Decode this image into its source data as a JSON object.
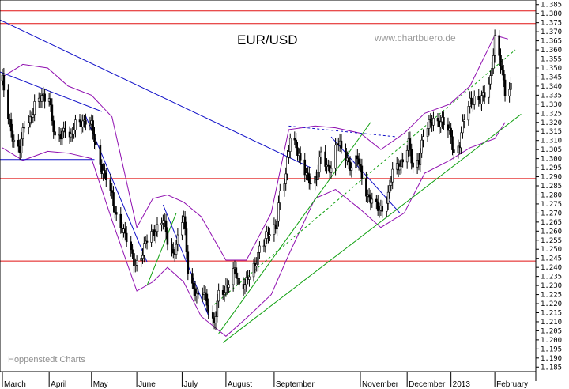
{
  "chart_data": {
    "type": "candlestick",
    "title": "EUR/USD",
    "watermark": "www.chartbuero.de",
    "credit": "Hoppenstedt Charts",
    "ylim": [
      1.1825,
      1.3875
    ],
    "y_ticks": [
      "1.185",
      "1.190",
      "1.195",
      "1.200",
      "1.205",
      "1.210",
      "1.215",
      "1.220",
      "1.225",
      "1.230",
      "1.235",
      "1.240",
      "1.245",
      "1.250",
      "1.255",
      "1.260",
      "1.265",
      "1.270",
      "1.275",
      "1.280",
      "1.285",
      "1.290",
      "1.295",
      "1.300",
      "1.305",
      "1.310",
      "1.315",
      "1.320",
      "1.325",
      "1.330",
      "1.335",
      "1.340",
      "1.345",
      "1.350",
      "1.355",
      "1.360",
      "1.365",
      "1.370",
      "1.375",
      "1.380",
      "1.385"
    ],
    "x_start": "2012-03-01",
    "x_end": "2013-02-15",
    "months": [
      {
        "label": "March",
        "date": "2012-03-01"
      },
      {
        "label": "April",
        "date": "2012-04-02"
      },
      {
        "label": "May",
        "date": "2012-05-01"
      },
      {
        "label": "June",
        "date": "2012-06-01"
      },
      {
        "label": "July",
        "date": "2012-07-02"
      },
      {
        "label": "August",
        "date": "2012-08-01"
      },
      {
        "label": "September",
        "date": "2012-09-03"
      },
      {
        "label": "November",
        "date": "2012-11-01"
      },
      {
        "label": "December",
        "date": "2012-12-03"
      },
      {
        "label": "2013",
        "date": "2013-01-02"
      },
      {
        "label": "February",
        "date": "2013-02-01"
      }
    ],
    "horizontal_levels": [
      1.3815,
      1.3745,
      1.289,
      1.2435
    ],
    "close_path": [
      [
        "2012-03-01",
        1.343
      ],
      [
        "2012-03-05",
        1.322
      ],
      [
        "2012-03-09",
        1.31
      ],
      [
        "2012-03-13",
        1.305
      ],
      [
        "2012-03-16",
        1.318
      ],
      [
        "2012-03-20",
        1.322
      ],
      [
        "2012-03-23",
        1.33
      ],
      [
        "2012-03-28",
        1.333
      ],
      [
        "2012-04-02",
        1.335
      ],
      [
        "2012-04-06",
        1.31
      ],
      [
        "2012-04-10",
        1.312
      ],
      [
        "2012-04-13",
        1.318
      ],
      [
        "2012-04-17",
        1.312
      ],
      [
        "2012-04-20",
        1.318
      ],
      [
        "2012-04-24",
        1.32
      ],
      [
        "2012-04-27",
        1.322
      ],
      [
        "2012-05-01",
        1.318
      ],
      [
        "2012-05-04",
        1.305
      ],
      [
        "2012-05-08",
        1.295
      ],
      [
        "2012-05-11",
        1.29
      ],
      [
        "2012-05-15",
        1.278
      ],
      [
        "2012-05-18",
        1.268
      ],
      [
        "2012-05-22",
        1.262
      ],
      [
        "2012-05-25",
        1.255
      ],
      [
        "2012-05-30",
        1.243
      ],
      [
        "2012-06-01",
        1.243
      ],
      [
        "2012-06-05",
        1.248
      ],
      [
        "2012-06-08",
        1.255
      ],
      [
        "2012-06-12",
        1.26
      ],
      [
        "2012-06-15",
        1.262
      ],
      [
        "2012-06-19",
        1.266
      ],
      [
        "2012-06-22",
        1.255
      ],
      [
        "2012-06-26",
        1.248
      ],
      [
        "2012-06-29",
        1.255
      ],
      [
        "2012-07-03",
        1.268
      ],
      [
        "2012-07-06",
        1.24
      ],
      [
        "2012-07-10",
        1.228
      ],
      [
        "2012-07-13",
        1.222
      ],
      [
        "2012-07-17",
        1.227
      ],
      [
        "2012-07-20",
        1.218
      ],
      [
        "2012-07-24",
        1.208
      ],
      [
        "2012-07-27",
        1.225
      ],
      [
        "2012-07-31",
        1.228
      ],
      [
        "2012-08-03",
        1.232
      ],
      [
        "2012-08-07",
        1.238
      ],
      [
        "2012-08-10",
        1.23
      ],
      [
        "2012-08-14",
        1.232
      ],
      [
        "2012-08-17",
        1.235
      ],
      [
        "2012-08-21",
        1.24
      ],
      [
        "2012-08-24",
        1.252
      ],
      [
        "2012-08-28",
        1.256
      ],
      [
        "2012-08-31",
        1.258
      ],
      [
        "2012-09-04",
        1.262
      ],
      [
        "2012-09-07",
        1.282
      ],
      [
        "2012-09-11",
        1.29
      ],
      [
        "2012-09-14",
        1.312
      ],
      [
        "2012-09-18",
        1.308
      ],
      [
        "2012-09-21",
        1.298
      ],
      [
        "2012-09-25",
        1.29
      ],
      [
        "2012-09-28",
        1.288
      ],
      [
        "2012-10-02",
        1.29
      ],
      [
        "2012-10-05",
        1.302
      ],
      [
        "2012-10-09",
        1.295
      ],
      [
        "2012-10-12",
        1.296
      ],
      [
        "2012-10-16",
        1.309
      ],
      [
        "2012-10-19",
        1.305
      ],
      [
        "2012-10-23",
        1.3
      ],
      [
        "2012-10-26",
        1.295
      ],
      [
        "2012-10-30",
        1.3
      ],
      [
        "2012-11-02",
        1.29
      ],
      [
        "2012-11-06",
        1.28
      ],
      [
        "2012-11-09",
        1.276
      ],
      [
        "2012-11-13",
        1.272
      ],
      [
        "2012-11-16",
        1.273
      ],
      [
        "2012-11-20",
        1.28
      ],
      [
        "2012-11-23",
        1.292
      ],
      [
        "2012-11-27",
        1.296
      ],
      [
        "2012-11-30",
        1.3
      ],
      [
        "2012-12-04",
        1.308
      ],
      [
        "2012-12-07",
        1.294
      ],
      [
        "2012-12-11",
        1.3
      ],
      [
        "2012-12-14",
        1.313
      ],
      [
        "2012-12-18",
        1.318
      ],
      [
        "2012-12-21",
        1.322
      ],
      [
        "2012-12-27",
        1.32
      ],
      [
        "2013-01-02",
        1.313
      ],
      [
        "2013-01-04",
        1.303
      ],
      [
        "2013-01-08",
        1.308
      ],
      [
        "2013-01-11",
        1.322
      ],
      [
        "2013-01-15",
        1.332
      ],
      [
        "2013-01-18",
        1.333
      ],
      [
        "2013-01-22",
        1.331
      ],
      [
        "2013-01-25",
        1.336
      ],
      [
        "2013-01-29",
        1.345
      ],
      [
        "2013-02-01",
        1.365
      ],
      [
        "2013-02-05",
        1.352
      ],
      [
        "2013-02-08",
        1.338
      ],
      [
        "2013-02-12",
        1.34
      ]
    ],
    "bollinger_upper": [
      [
        "2012-03-01",
        1.345
      ],
      [
        "2012-03-15",
        1.352
      ],
      [
        "2012-04-01",
        1.35
      ],
      [
        "2012-04-15",
        1.34
      ],
      [
        "2012-05-01",
        1.335
      ],
      [
        "2012-05-15",
        1.323
      ],
      [
        "2012-06-01",
        1.262
      ],
      [
        "2012-06-12",
        1.278
      ],
      [
        "2012-06-22",
        1.28
      ],
      [
        "2012-07-03",
        1.276
      ],
      [
        "2012-07-15",
        1.268
      ],
      [
        "2012-08-01",
        1.244
      ],
      [
        "2012-08-15",
        1.244
      ],
      [
        "2012-09-01",
        1.27
      ],
      [
        "2012-09-13",
        1.316
      ],
      [
        "2012-10-01",
        1.318
      ],
      [
        "2012-10-15",
        1.317
      ],
      [
        "2012-11-01",
        1.314
      ],
      [
        "2012-11-15",
        1.305
      ],
      [
        "2012-12-01",
        1.314
      ],
      [
        "2012-12-15",
        1.325
      ],
      [
        "2013-01-01",
        1.33
      ],
      [
        "2013-01-15",
        1.34
      ],
      [
        "2013-02-01",
        1.368
      ],
      [
        "2013-02-10",
        1.366
      ]
    ],
    "bollinger_lower": [
      [
        "2012-03-01",
        1.306
      ],
      [
        "2012-03-15",
        1.299
      ],
      [
        "2012-04-01",
        1.304
      ],
      [
        "2012-04-15",
        1.303
      ],
      [
        "2012-05-01",
        1.3
      ],
      [
        "2012-05-15",
        1.266
      ],
      [
        "2012-06-01",
        1.227
      ],
      [
        "2012-06-12",
        1.232
      ],
      [
        "2012-06-22",
        1.24
      ],
      [
        "2012-07-03",
        1.232
      ],
      [
        "2012-07-15",
        1.213
      ],
      [
        "2012-08-01",
        1.202
      ],
      [
        "2012-08-15",
        1.212
      ],
      [
        "2012-09-01",
        1.225
      ],
      [
        "2012-09-13",
        1.247
      ],
      [
        "2012-10-01",
        1.278
      ],
      [
        "2012-10-15",
        1.283
      ],
      [
        "2012-11-01",
        1.272
      ],
      [
        "2012-11-15",
        1.262
      ],
      [
        "2012-12-01",
        1.27
      ],
      [
        "2012-12-15",
        1.292
      ],
      [
        "2013-01-01",
        1.299
      ],
      [
        "2013-01-15",
        1.306
      ],
      [
        "2013-02-01",
        1.311
      ],
      [
        "2013-02-08",
        1.32
      ]
    ],
    "trend_lines": [
      {
        "color": "#1010c8",
        "dashed": false,
        "points": [
          [
            "2012-02-23",
            1.3765
          ],
          [
            "2012-09-28",
            1.295
          ]
        ]
      },
      {
        "color": "#1010c8",
        "dashed": false,
        "points": [
          [
            "2012-02-23",
            1.3478
          ],
          [
            "2012-05-08",
            1.326
          ]
        ]
      },
      {
        "color": "#1010c8",
        "dashed": false,
        "points": [
          [
            "2012-02-23",
            1.2995
          ],
          [
            "2012-05-03",
            1.2995
          ]
        ]
      },
      {
        "color": "#1010c8",
        "dashed": false,
        "points": [
          [
            "2012-04-27",
            1.3235
          ],
          [
            "2012-06-08",
            1.243
          ]
        ]
      },
      {
        "color": "#1010c8",
        "dashed": false,
        "points": [
          [
            "2012-06-19",
            1.2745
          ],
          [
            "2012-07-20",
            1.2135
          ]
        ]
      },
      {
        "color": "#1010c8",
        "dashed": false,
        "points": [
          [
            "2012-10-12",
            1.312
          ],
          [
            "2012-11-28",
            1.27
          ]
        ]
      },
      {
        "color": "#1010c8",
        "dashed": true,
        "points": [
          [
            "2012-09-13",
            1.318
          ],
          [
            "2012-11-26",
            1.312
          ]
        ]
      },
      {
        "color": "#10a010",
        "dashed": false,
        "points": [
          [
            "2012-06-08",
            1.23
          ],
          [
            "2012-06-28",
            1.27
          ]
        ]
      },
      {
        "color": "#10a010",
        "dashed": false,
        "points": [
          [
            "2012-07-27",
            1.2035
          ],
          [
            "2012-11-08",
            1.32
          ]
        ]
      },
      {
        "color": "#10a010",
        "dashed": false,
        "points": [
          [
            "2012-07-30",
            1.1985
          ],
          [
            "2013-02-19",
            1.3245
          ]
        ]
      },
      {
        "color": "#10a010",
        "dashed": true,
        "points": [
          [
            "2012-07-24",
            1.2195
          ],
          [
            "2013-02-15",
            1.36
          ]
        ]
      }
    ]
  }
}
